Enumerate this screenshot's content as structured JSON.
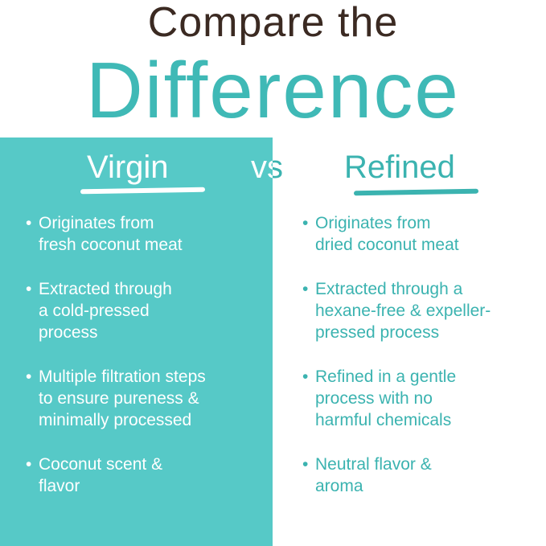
{
  "header": {
    "line1": "Compare the",
    "line2": "Difference"
  },
  "colors": {
    "panel": "#56c9c7",
    "accent": "#3bb3b0",
    "title_dark": "#3b2a22"
  },
  "left": {
    "title": "Virgin",
    "items": [
      "Originates from\nfresh coconut meat",
      "Extracted through\na cold-pressed\nprocess",
      "Multiple filtration steps\nto ensure pureness &\nminimally processed",
      "Coconut scent &\nflavor"
    ]
  },
  "vs": "vs",
  "right": {
    "title": "Refined",
    "items": [
      "Originates from\ndried coconut meat",
      "Extracted through a\nhexane-free & expeller-\npressed process",
      "Refined in a gentle\nprocess with no\nharmful chemicals",
      "Neutral flavor &\naroma"
    ]
  },
  "bullet": "•"
}
